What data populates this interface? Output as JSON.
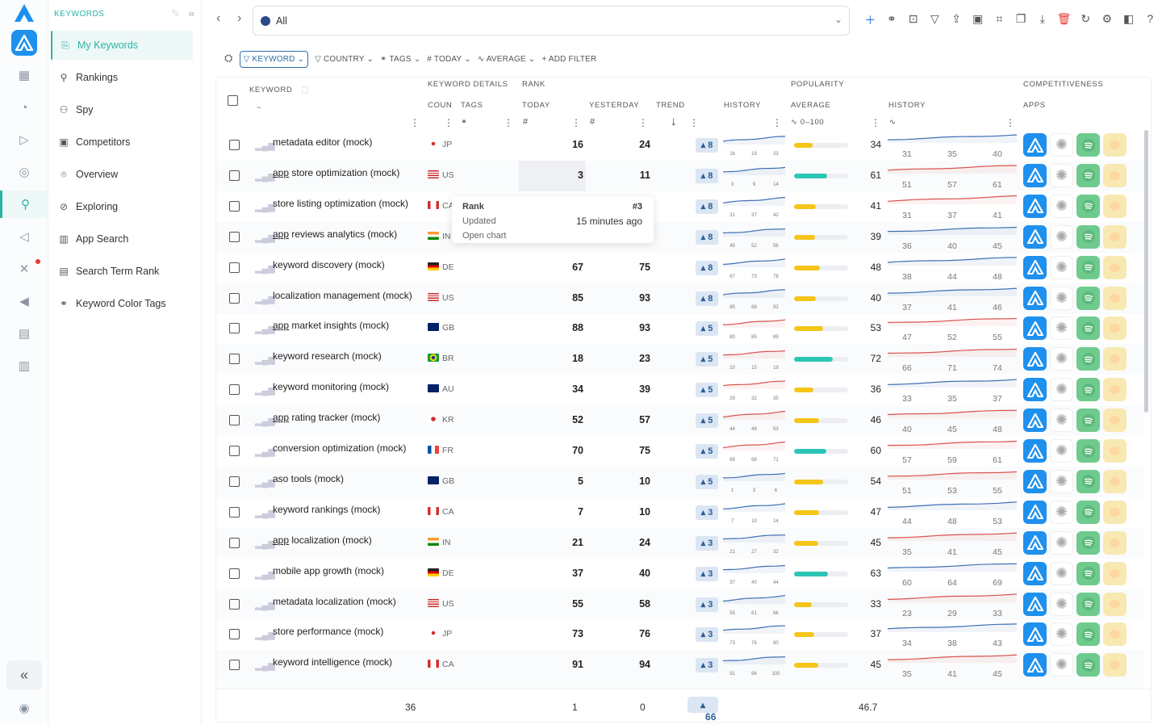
{
  "sidebar": {
    "header": "KEYWORDS",
    "items": [
      {
        "label": "My Keywords",
        "icon": "bookmark-icon",
        "selected": true
      },
      {
        "label": "Rankings",
        "icon": "wrench-icon"
      },
      {
        "label": "Spy",
        "icon": "spy-icon"
      },
      {
        "label": "Competitors",
        "icon": "competitors-icon"
      },
      {
        "label": "Overview",
        "icon": "overview-icon"
      },
      {
        "label": "Exploring",
        "icon": "compass-icon"
      },
      {
        "label": "App Search",
        "icon": "chart-icon"
      },
      {
        "label": "Search Term Rank",
        "icon": "document-icon"
      },
      {
        "label": "Keyword Color Tags",
        "icon": "tags-icon"
      }
    ]
  },
  "toolbar": {
    "segment": "All"
  },
  "filters": [
    {
      "label": "KEYWORD",
      "active": true
    },
    {
      "label": "COUNTRY"
    },
    {
      "label": "TAGS"
    },
    {
      "label": "TODAY"
    },
    {
      "label": "AVERAGE"
    },
    {
      "label": "ADD FILTER"
    }
  ],
  "columns": {
    "keyword": "KEYWORD",
    "keyword_details": "KEYWORD DETAILS",
    "rank": "RANK",
    "popularity": "POPULARITY",
    "competitiveness": "COMPETITIVENESS",
    "country": "COUN",
    "tags": "TAGS",
    "today": "TODAY",
    "yesterday": "YESTERDAY",
    "trend": "TREND",
    "history": "HISTORY",
    "average": "AVERAGE",
    "history2": "HISTORY",
    "apps": "APPS",
    "hash1": "#",
    "hash2": "#",
    "avg_range": "0–100"
  },
  "tooltip": {
    "rank_label": "Rank",
    "rank_value": "#3",
    "updated_label": "Updated",
    "updated_value": "15 minutes ago",
    "open_chart": "Open chart"
  },
  "rows": [
    {
      "kw": "metadata editor (mock)",
      "ul": "",
      "cc": "JP",
      "today": "16",
      "yest": "24",
      "trend": "8",
      "r": [
        16,
        19,
        23
      ],
      "pop": 34,
      "pc": "yellow",
      "h": [
        31,
        35,
        40
      ]
    },
    {
      "kw": "store optimization (mock)",
      "ul": "app",
      "cc": "US",
      "today": "3",
      "yest": "11",
      "trend": "8",
      "r": [
        3,
        9,
        14
      ],
      "pop": 61,
      "pc": "teal",
      "h": [
        51,
        57,
        61
      ]
    },
    {
      "kw": "store listing optimization (mock)",
      "ul": "",
      "cc": "CA",
      "today": "",
      "yest": "",
      "trend": "8",
      "r": [
        31,
        37,
        42
      ],
      "pop": 41,
      "pc": "yellow",
      "h": [
        31,
        37,
        41
      ]
    },
    {
      "kw": "reviews analytics (mock)",
      "ul": "app",
      "cc": "IN",
      "today": "",
      "yest": "",
      "trend": "8",
      "r": [
        49,
        52,
        56
      ],
      "pop": 39,
      "pc": "yellow",
      "h": [
        36,
        40,
        45
      ]
    },
    {
      "kw": "keyword discovery (mock)",
      "ul": "",
      "cc": "DE",
      "today": "67",
      "yest": "75",
      "trend": "8",
      "r": [
        67,
        73,
        78
      ],
      "pop": 48,
      "pc": "yellow",
      "h": [
        38,
        44,
        48
      ]
    },
    {
      "kw": "localization management (mock)",
      "ul": "",
      "cc": "US",
      "today": "85",
      "yest": "93",
      "trend": "8",
      "r": [
        85,
        88,
        92
      ],
      "pop": 40,
      "pc": "yellow",
      "h": [
        37,
        41,
        46
      ]
    },
    {
      "kw": "market insights (mock)",
      "ul": "app",
      "cc": "GB",
      "today": "88",
      "yest": "93",
      "trend": "5",
      "r": [
        80,
        85,
        89
      ],
      "pop": 53,
      "pc": "yellow",
      "h": [
        47,
        52,
        55
      ]
    },
    {
      "kw": "keyword research (mock)",
      "ul": "",
      "cc": "BR",
      "today": "18",
      "yest": "23",
      "trend": "5",
      "r": [
        10,
        15,
        19
      ],
      "pop": 72,
      "pc": "teal",
      "h": [
        66,
        71,
        74
      ]
    },
    {
      "kw": "keyword monitoring (mock)",
      "ul": "",
      "cc": "AU",
      "today": "34",
      "yest": "39",
      "trend": "5",
      "r": [
        29,
        32,
        35
      ],
      "pop": 36,
      "pc": "yellow",
      "h": [
        33,
        35,
        37
      ]
    },
    {
      "kw": "rating tracker (mock)",
      "ul": "app",
      "cc": "KR",
      "today": "52",
      "yest": "57",
      "trend": "5",
      "r": [
        44,
        49,
        53
      ],
      "pop": 46,
      "pc": "yellow",
      "h": [
        40,
        45,
        48
      ]
    },
    {
      "kw": "conversion optimization (mock)",
      "ul": "",
      "cc": "FR",
      "today": "70",
      "yest": "75",
      "trend": "5",
      "r": [
        65,
        68,
        71
      ],
      "pop": 60,
      "pc": "teal",
      "h": [
        57,
        59,
        61
      ]
    },
    {
      "kw": "aso tools (mock)",
      "ul": "",
      "cc": "GB",
      "today": "5",
      "yest": "10",
      "trend": "5",
      "r": [
        1,
        3,
        6
      ],
      "pop": 54,
      "pc": "yellow",
      "h": [
        51,
        53,
        55
      ]
    },
    {
      "kw": "keyword rankings (mock)",
      "ul": "",
      "cc": "CA",
      "today": "7",
      "yest": "10",
      "trend": "3",
      "r": [
        7,
        10,
        14
      ],
      "pop": 47,
      "pc": "yellow",
      "h": [
        44,
        48,
        53
      ]
    },
    {
      "kw": "localization (mock)",
      "ul": "app",
      "cc": "IN",
      "today": "21",
      "yest": "24",
      "trend": "3",
      "r": [
        21,
        27,
        32
      ],
      "pop": 45,
      "pc": "yellow",
      "h": [
        35,
        41,
        45
      ]
    },
    {
      "kw": "mobile app growth (mock)",
      "ul": "",
      "cc": "DE",
      "today": "37",
      "yest": "40",
      "trend": "3",
      "r": [
        37,
        40,
        44
      ],
      "pop": 63,
      "pc": "teal",
      "h": [
        60,
        64,
        69
      ]
    },
    {
      "kw": "metadata localization (mock)",
      "ul": "",
      "cc": "US",
      "today": "55",
      "yest": "58",
      "trend": "3",
      "r": [
        55,
        61,
        66
      ],
      "pop": 33,
      "pc": "yellow",
      "h": [
        23,
        29,
        33
      ]
    },
    {
      "kw": "store performance (mock)",
      "ul": "",
      "cc": "JP",
      "today": "73",
      "yest": "76",
      "trend": "3",
      "r": [
        73,
        76,
        80
      ],
      "pop": 37,
      "pc": "yellow",
      "h": [
        34,
        38,
        43
      ]
    },
    {
      "kw": "keyword intelligence (mock)",
      "ul": "",
      "cc": "CA",
      "today": "91",
      "yest": "94",
      "trend": "3",
      "r": [
        91,
        96,
        100
      ],
      "pop": 45,
      "pc": "yellow",
      "h": [
        35,
        41,
        45
      ]
    }
  ],
  "footer": {
    "count": "36",
    "today": "1",
    "yest": "0",
    "trend": "66",
    "avg": "46.7"
  },
  "colors": {
    "accent": "#2bb3a3",
    "blue": "#1e90ee",
    "yellow": "#f5c518",
    "teal": "#2ec4b6",
    "red": "#d9534f"
  }
}
